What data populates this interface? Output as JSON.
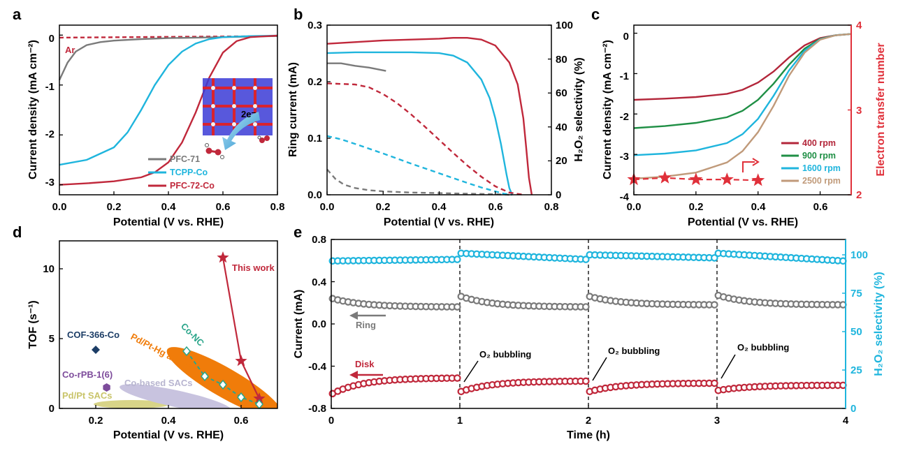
{
  "colors": {
    "gray": "#7a7a7a",
    "cyan": "#1fb5dd",
    "red": "#c0283b",
    "darkred": "#b3263a",
    "green": "#1f8f45",
    "tan": "#c09a7a",
    "orange": "#f07c0a",
    "teal": "#2aa58a",
    "navy": "#1c3d66",
    "purple": "#7d4c9b",
    "lavender": "#c8c3df",
    "khaki": "#d8d488"
  },
  "panels": {
    "a": {
      "letter": "a",
      "xlabel": "Potential (V vs. RHE)",
      "ylabel": "Current density (mA cm⁻²)",
      "xticks": [
        "0.0",
        "0.2",
        "0.4",
        "0.6",
        "0.8"
      ],
      "yticks": [
        "0",
        "-1",
        "-2",
        "-3"
      ],
      "ar_label": "Ar",
      "legend": [
        "PFC-71",
        "TCPP-Co",
        "PFC-72-Co"
      ],
      "inset_label": "2e⁻"
    },
    "b": {
      "letter": "b",
      "xlabel": "Potential (V vs. RHE)",
      "ylabel_left": "Ring current (mA)",
      "ylabel_right": "H₂O₂ selectivity (%)",
      "xticks": [
        "0.0",
        "0.2",
        "0.4",
        "0.6",
        "0.8"
      ],
      "yticks_left": [
        "0.0",
        "0.1",
        "0.2",
        "0.3"
      ],
      "yticks_right": [
        "0",
        "20",
        "40",
        "60",
        "80",
        "100"
      ]
    },
    "c": {
      "letter": "c",
      "xlabel": "Potential (V vs. RHE)",
      "ylabel_left": "Current density (mA cm⁻²)",
      "ylabel_right": "Electron transfer number",
      "xticks": [
        "0.0",
        "0.2",
        "0.4",
        "0.6"
      ],
      "yticks_left": [
        "0",
        "-1",
        "-2",
        "-3",
        "-4"
      ],
      "yticks_right": [
        "2",
        "3",
        "4"
      ],
      "legend": [
        "400 rpm",
        "900 rpm",
        "1600 rpm",
        "2500 rpm"
      ]
    },
    "d": {
      "letter": "d",
      "xlabel": "Potential (V vs. RHE)",
      "ylabel": "TOF (s⁻¹)",
      "xticks": [
        "0.2",
        "0.4",
        "0.6"
      ],
      "yticks": [
        "0",
        "5",
        "10"
      ],
      "labels": {
        "this_work": "This work",
        "co_nc": "Co-NC",
        "pdpthg": "Pd/Pt-Hg alloys",
        "cof": "COF-366-Co",
        "corpb": "Co-rPB-1(6)",
        "cosac": "Co-based SACs",
        "pdptsac": "Pd/Pt SACs"
      }
    },
    "e": {
      "letter": "e",
      "xlabel": "Time (h)",
      "ylabel_left": "Current  (mA)",
      "ylabel_right": "H₂O₂ selectivity (%)",
      "xticks": [
        "0",
        "1",
        "2",
        "3",
        "4"
      ],
      "yticks_left": [
        "-0.8",
        "-0.4",
        "0.0",
        "0.4",
        "0.8"
      ],
      "yticks_right": [
        "0",
        "25",
        "50",
        "75",
        "100"
      ],
      "ring_label": "Ring",
      "disk_label": "Disk",
      "bubbling_label": "O₂ bubbling"
    }
  },
  "chart_data": [
    {
      "panel": "a",
      "type": "line",
      "xlabel": "Potential (V vs. RHE)",
      "ylabel": "Current density (mA cm⁻²)",
      "xlim": [
        0,
        0.8
      ],
      "ylim": [
        -3.2,
        0.2
      ],
      "series": [
        {
          "name": "Ar",
          "style": "dashed",
          "x": [
            0,
            0.8
          ],
          "y": [
            -0.05,
            -0.02
          ]
        },
        {
          "name": "PFC-71",
          "x": [
            0,
            0.03,
            0.06,
            0.1,
            0.15,
            0.2,
            0.3,
            0.4,
            0.5,
            0.6,
            0.7,
            0.8
          ],
          "y": [
            -0.9,
            -0.55,
            -0.33,
            -0.2,
            -0.14,
            -0.11,
            -0.08,
            -0.06,
            -0.05,
            -0.04,
            -0.03,
            -0.02
          ]
        },
        {
          "name": "TCPP-Co",
          "x": [
            0,
            0.1,
            0.2,
            0.25,
            0.3,
            0.35,
            0.4,
            0.45,
            0.5,
            0.55,
            0.6,
            0.7,
            0.8
          ],
          "y": [
            -2.6,
            -2.5,
            -2.25,
            -1.95,
            -1.5,
            -1.0,
            -0.6,
            -0.33,
            -0.17,
            -0.08,
            -0.04,
            -0.02,
            -0.01
          ]
        },
        {
          "name": "PFC-72-Co",
          "x": [
            0,
            0.1,
            0.2,
            0.3,
            0.35,
            0.4,
            0.45,
            0.5,
            0.55,
            0.6,
            0.65,
            0.7,
            0.8
          ],
          "y": [
            -3.0,
            -2.97,
            -2.93,
            -2.85,
            -2.75,
            -2.55,
            -2.15,
            -1.55,
            -0.85,
            -0.35,
            -0.12,
            -0.04,
            -0.01
          ]
        }
      ]
    },
    {
      "panel": "b",
      "type": "line",
      "xlabel": "Potential (V vs. RHE)",
      "ylabel": "Ring current (mA)",
      "y2label": "H₂O₂ selectivity (%)",
      "xlim": [
        0,
        0.8
      ],
      "ylim": [
        0,
        0.3
      ],
      "y2lim": [
        0,
        100
      ],
      "series": [
        {
          "name": "PFC-71",
          "axis": "right",
          "x": [
            0,
            0.05,
            0.1,
            0.15,
            0.21
          ],
          "y": [
            77.5,
            77.5,
            76,
            75,
            73
          ]
        },
        {
          "name": "TCPP-Co",
          "axis": "right",
          "x": [
            0,
            0.1,
            0.2,
            0.3,
            0.4,
            0.45,
            0.5,
            0.55,
            0.58,
            0.6,
            0.62,
            0.64,
            0.65,
            0.66
          ],
          "y": [
            83.5,
            84,
            84,
            84,
            83.5,
            82,
            78,
            68,
            57,
            45,
            30,
            12,
            4,
            0
          ]
        },
        {
          "name": "PFC-72-Co",
          "axis": "right",
          "x": [
            0,
            0.1,
            0.2,
            0.3,
            0.4,
            0.45,
            0.5,
            0.55,
            0.6,
            0.65,
            0.68,
            0.7,
            0.71,
            0.72,
            0.73
          ],
          "y": [
            89,
            90,
            91,
            91.5,
            92,
            92.5,
            92.5,
            91.5,
            88,
            78,
            65,
            45,
            28,
            10,
            0
          ]
        },
        {
          "name": "PFC-71",
          "axis": "left",
          "style": "dashed",
          "x": [
            0,
            0.03,
            0.06,
            0.1,
            0.15,
            0.2,
            0.3,
            0.4,
            0.5,
            0.6,
            0.65
          ],
          "y": [
            0.045,
            0.028,
            0.018,
            0.012,
            0.008,
            0.006,
            0.004,
            0.003,
            0.002,
            0.001,
            0
          ]
        },
        {
          "name": "TCPP-Co",
          "axis": "left",
          "style": "dashed",
          "x": [
            0,
            0.05,
            0.1,
            0.2,
            0.3,
            0.4,
            0.5,
            0.55,
            0.6,
            0.63,
            0.66
          ],
          "y": [
            0.104,
            0.098,
            0.09,
            0.073,
            0.055,
            0.038,
            0.021,
            0.013,
            0.006,
            0.002,
            0
          ]
        },
        {
          "name": "PFC-72-Co",
          "axis": "left",
          "style": "dashed",
          "x": [
            0,
            0.1,
            0.15,
            0.2,
            0.25,
            0.3,
            0.35,
            0.4,
            0.45,
            0.5,
            0.55,
            0.6,
            0.65,
            0.7
          ],
          "y": [
            0.197,
            0.195,
            0.19,
            0.178,
            0.162,
            0.142,
            0.12,
            0.097,
            0.074,
            0.052,
            0.032,
            0.015,
            0.004,
            0
          ]
        }
      ]
    },
    {
      "panel": "c",
      "type": "line",
      "xlabel": "Potential (V vs. RHE)",
      "ylabel": "Current density (mA cm⁻²)",
      "y2label": "Electron transfer number",
      "xlim": [
        0,
        0.7
      ],
      "ylim": [
        -4,
        0.2
      ],
      "y2lim": [
        2,
        4
      ],
      "series": [
        {
          "name": "400 rpm",
          "x": [
            0,
            0.1,
            0.2,
            0.3,
            0.35,
            0.4,
            0.45,
            0.5,
            0.55,
            0.6,
            0.65,
            0.7
          ],
          "y": [
            -1.65,
            -1.62,
            -1.58,
            -1.5,
            -1.4,
            -1.22,
            -0.95,
            -0.6,
            -0.3,
            -0.12,
            -0.05,
            -0.02
          ]
        },
        {
          "name": "900 rpm",
          "x": [
            0,
            0.1,
            0.2,
            0.3,
            0.35,
            0.4,
            0.45,
            0.5,
            0.55,
            0.6,
            0.65,
            0.7
          ],
          "y": [
            -2.35,
            -2.3,
            -2.22,
            -2.08,
            -1.92,
            -1.65,
            -1.25,
            -0.78,
            -0.38,
            -0.14,
            -0.05,
            -0.02
          ]
        },
        {
          "name": "1600 rpm",
          "x": [
            0,
            0.1,
            0.2,
            0.3,
            0.35,
            0.4,
            0.45,
            0.5,
            0.55,
            0.6,
            0.65,
            0.7
          ],
          "y": [
            -3.02,
            -2.98,
            -2.9,
            -2.72,
            -2.5,
            -2.12,
            -1.55,
            -0.92,
            -0.43,
            -0.15,
            -0.05,
            -0.02
          ]
        },
        {
          "name": "2500 rpm",
          "x": [
            0,
            0.1,
            0.2,
            0.3,
            0.35,
            0.4,
            0.45,
            0.5,
            0.55,
            0.6,
            0.65,
            0.7
          ],
          "y": [
            -3.6,
            -3.55,
            -3.45,
            -3.2,
            -2.92,
            -2.45,
            -1.8,
            -1.05,
            -0.48,
            -0.16,
            -0.05,
            -0.02
          ]
        },
        {
          "name": "Electron transfer number",
          "axis": "right",
          "style": "dashed-stars",
          "x": [
            0,
            0.1,
            0.2,
            0.3,
            0.4
          ],
          "y": [
            2.18,
            2.2,
            2.18,
            2.18,
            2.17
          ]
        }
      ]
    },
    {
      "panel": "d",
      "type": "scatter",
      "xlabel": "Potential (V vs. RHE)",
      "ylabel": "TOF (s⁻¹)",
      "xlim": [
        0.1,
        0.7
      ],
      "ylim": [
        0,
        12
      ],
      "series": [
        {
          "name": "This work",
          "x": [
            0.55,
            0.6,
            0.65
          ],
          "y": [
            10.8,
            3.4,
            0.7
          ]
        },
        {
          "name": "Co-NC",
          "x": [
            0.45,
            0.5,
            0.55,
            0.6,
            0.65
          ],
          "y": [
            4.1,
            2.3,
            1.7,
            0.8,
            0.3
          ]
        },
        {
          "name": "COF-366-Co",
          "x": [
            0.2
          ],
          "y": [
            4.2
          ]
        },
        {
          "name": "Co-rPB-1(6)",
          "x": [
            0.23
          ],
          "y": [
            1.5
          ]
        }
      ]
    },
    {
      "panel": "e",
      "type": "scatter",
      "xlabel": "Time (h)",
      "ylabel": "Current  (mA)",
      "y2label": "H₂O₂ selectivity (%)",
      "xlim": [
        0,
        4
      ],
      "ylim": [
        -0.8,
        0.8
      ],
      "y2lim": [
        0,
        110
      ],
      "segments": [
        {
          "start": 0,
          "end": 1,
          "ring": [
            0.24,
            0.16
          ],
          "disk": [
            -0.66,
            -0.51
          ],
          "selectivity": [
            96,
            97
          ]
        },
        {
          "start": 1,
          "end": 2,
          "ring": [
            0.26,
            0.16
          ],
          "disk": [
            -0.64,
            -0.54
          ],
          "selectivity": [
            101,
            97
          ]
        },
        {
          "start": 2,
          "end": 3,
          "ring": [
            0.26,
            0.18
          ],
          "disk": [
            -0.64,
            -0.56
          ],
          "selectivity": [
            100,
            98
          ]
        },
        {
          "start": 3,
          "end": 4,
          "ring": [
            0.27,
            0.18
          ],
          "disk": [
            -0.63,
            -0.58
          ],
          "selectivity": [
            101,
            96
          ]
        }
      ]
    }
  ]
}
